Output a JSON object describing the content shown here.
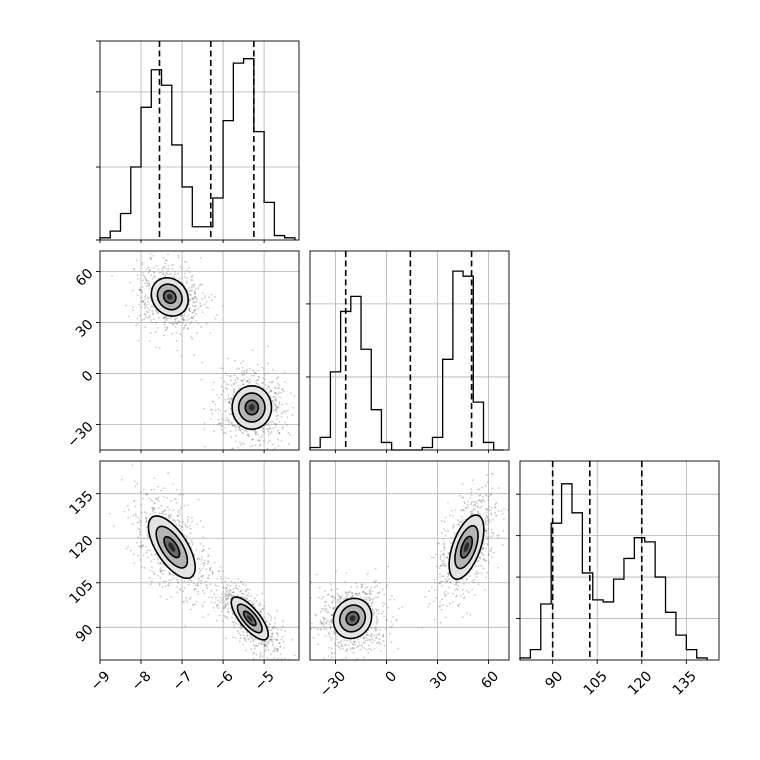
{
  "chart_data": {
    "type": "corner",
    "parameters": [
      {
        "id": "p1",
        "range": [
          -9.0,
          -4.15
        ],
        "ticks": [
          -9,
          -8,
          -7,
          -6,
          -5
        ],
        "tick_labels": [
          "−9",
          "−8",
          "−7",
          "−6",
          "−5"
        ],
        "quantiles": [
          -7.55,
          -6.3,
          -5.25
        ]
      },
      {
        "id": "p2",
        "range": [
          -45,
          72
        ],
        "ticks": [
          -30,
          0,
          30,
          60
        ],
        "tick_labels": [
          "−30",
          "0",
          "30",
          "60"
        ],
        "quantiles": [
          -24,
          14,
          50
        ]
      },
      {
        "id": "p3",
        "range": [
          79,
          146
        ],
        "ticks": [
          90,
          105,
          120,
          135
        ],
        "tick_labels": [
          "90",
          "105",
          "120",
          "135"
        ],
        "quantiles": [
          90,
          102.5,
          120
        ]
      }
    ],
    "histograms": [
      {
        "param": 0,
        "bin_edges": [
          -9.0,
          -8.75,
          -8.5,
          -8.25,
          -8.0,
          -7.75,
          -7.5,
          -7.25,
          -7.0,
          -6.75,
          -6.5,
          -6.25,
          -6.0,
          -5.75,
          -5.5,
          -5.25,
          -5.0,
          -4.75,
          -4.5,
          -4.25
        ],
        "counts": [
          0.01,
          0.04,
          0.12,
          0.33,
          0.6,
          0.77,
          0.7,
          0.43,
          0.24,
          0.06,
          0.06,
          0.19,
          0.54,
          0.8,
          0.82,
          0.49,
          0.17,
          0.02,
          0.01
        ],
        "ylim": [
          0,
          0.9
        ],
        "gridlines": [
          0.33,
          0.67
        ]
      },
      {
        "param": 1,
        "bin_edges": [
          -45,
          -39,
          -33,
          -27,
          -21,
          -15,
          -9,
          -3,
          3,
          9,
          15,
          21,
          27,
          33,
          39,
          45,
          51,
          57,
          63,
          69
        ],
        "counts": [
          0.01,
          0.05,
          0.31,
          0.55,
          0.61,
          0.4,
          0.16,
          0.03,
          0.0,
          0.0,
          0.0,
          0.01,
          0.05,
          0.36,
          0.71,
          0.69,
          0.19,
          0.03,
          0.0
        ],
        "ylim": [
          0,
          0.79
        ],
        "gridlines": [
          0.29,
          0.58
        ]
      },
      {
        "param": 2,
        "bin_edges": [
          79,
          82.5,
          86,
          89.5,
          93,
          96.5,
          100,
          103.5,
          107,
          110.5,
          114,
          117.5,
          121,
          124.5,
          128,
          131.5,
          135,
          138.5,
          142
        ],
        "counts": [
          0.01,
          0.05,
          0.27,
          0.66,
          0.85,
          0.71,
          0.42,
          0.29,
          0.28,
          0.39,
          0.49,
          0.59,
          0.57,
          0.4,
          0.23,
          0.12,
          0.05,
          0.01
        ],
        "ylim": [
          0,
          0.96
        ],
        "gridlines": [
          0.2,
          0.4,
          0.6,
          0.8
        ]
      }
    ],
    "scatter_panels": [
      {
        "x_param": 0,
        "y_param": 1,
        "modes": [
          {
            "cx": -7.3,
            "cy": 45,
            "sx": 0.3,
            "sy": 7.5,
            "rho": -0.15
          },
          {
            "cx": -5.3,
            "cy": -20,
            "sx": 0.32,
            "sy": 8.5,
            "rho": 0.0
          }
        ]
      },
      {
        "x_param": 0,
        "y_param": 2,
        "modes": [
          {
            "cx": -7.25,
            "cy": 117,
            "sx": 0.38,
            "sy": 7.0,
            "rho": -0.65
          },
          {
            "cx": -5.35,
            "cy": 93,
            "sx": 0.3,
            "sy": 4.8,
            "rho": -0.75
          }
        ]
      },
      {
        "x_param": 1,
        "y_param": 2,
        "modes": [
          {
            "cx": -20,
            "cy": 93,
            "sx": 7.5,
            "sy": 4.5,
            "rho": 0.1
          },
          {
            "cx": 47,
            "cy": 117,
            "sx": 6.8,
            "sy": 7.2,
            "rho": 0.55
          }
        ]
      }
    ],
    "contour_levels": [
      0.5,
      1.0,
      1.5
    ],
    "grid": true,
    "colors": {
      "line": "#000000",
      "grid": "#b0b0b0",
      "points": "#666666",
      "density_light": "#e4e4e4",
      "density_mid": "#b4b4b4",
      "density_dark": "#2a2a2a"
    }
  }
}
